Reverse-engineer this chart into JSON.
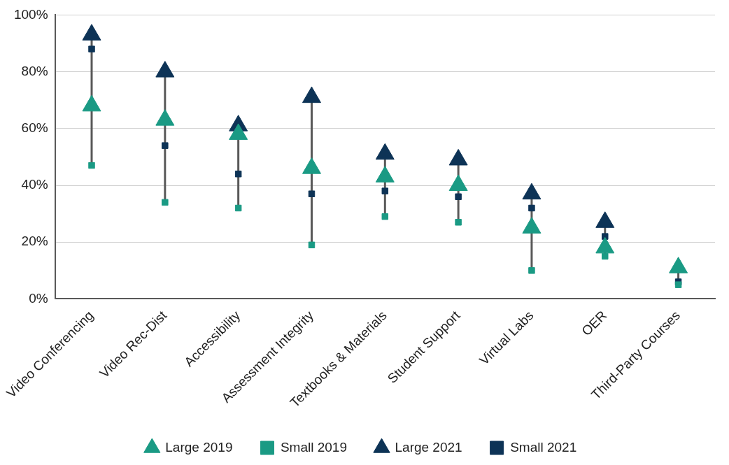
{
  "chart_data": {
    "type": "scatter",
    "categories": [
      "Video Conferencing",
      "Video Rec-Dist",
      "Accessibility",
      "Assessment Integrity",
      "Textbooks & Materials",
      "Student Support",
      "Virtual Labs",
      "OER",
      "Third-Party Courses"
    ],
    "series": [
      {
        "name": "Large 2019",
        "color": "#1a9a84",
        "marker": "triangle",
        "values": [
          68,
          63,
          58,
          46,
          43,
          40,
          25,
          18,
          11
        ]
      },
      {
        "name": "Small 2019",
        "color": "#1a9a84",
        "marker": "square",
        "values": [
          47,
          34,
          32,
          19,
          29,
          27,
          10,
          15,
          5
        ]
      },
      {
        "name": "Large 2021",
        "color": "#0d3356",
        "marker": "triangle",
        "values": [
          93,
          80,
          61,
          71,
          51,
          49,
          37,
          27,
          null
        ]
      },
      {
        "name": "Small 2021",
        "color": "#0d3356",
        "marker": "square",
        "values": [
          88,
          54,
          44,
          37,
          38,
          36,
          32,
          22,
          6
        ]
      }
    ],
    "ylim": [
      0,
      100
    ],
    "yticks": [
      {
        "value": 0,
        "label": "0%"
      },
      {
        "value": 20,
        "label": "20%"
      },
      {
        "value": 40,
        "label": "40%"
      },
      {
        "value": 60,
        "label": "60%"
      },
      {
        "value": 80,
        "label": "80%"
      },
      {
        "value": 100,
        "label": "100%"
      }
    ],
    "grid": "y",
    "legend": "bottom"
  }
}
